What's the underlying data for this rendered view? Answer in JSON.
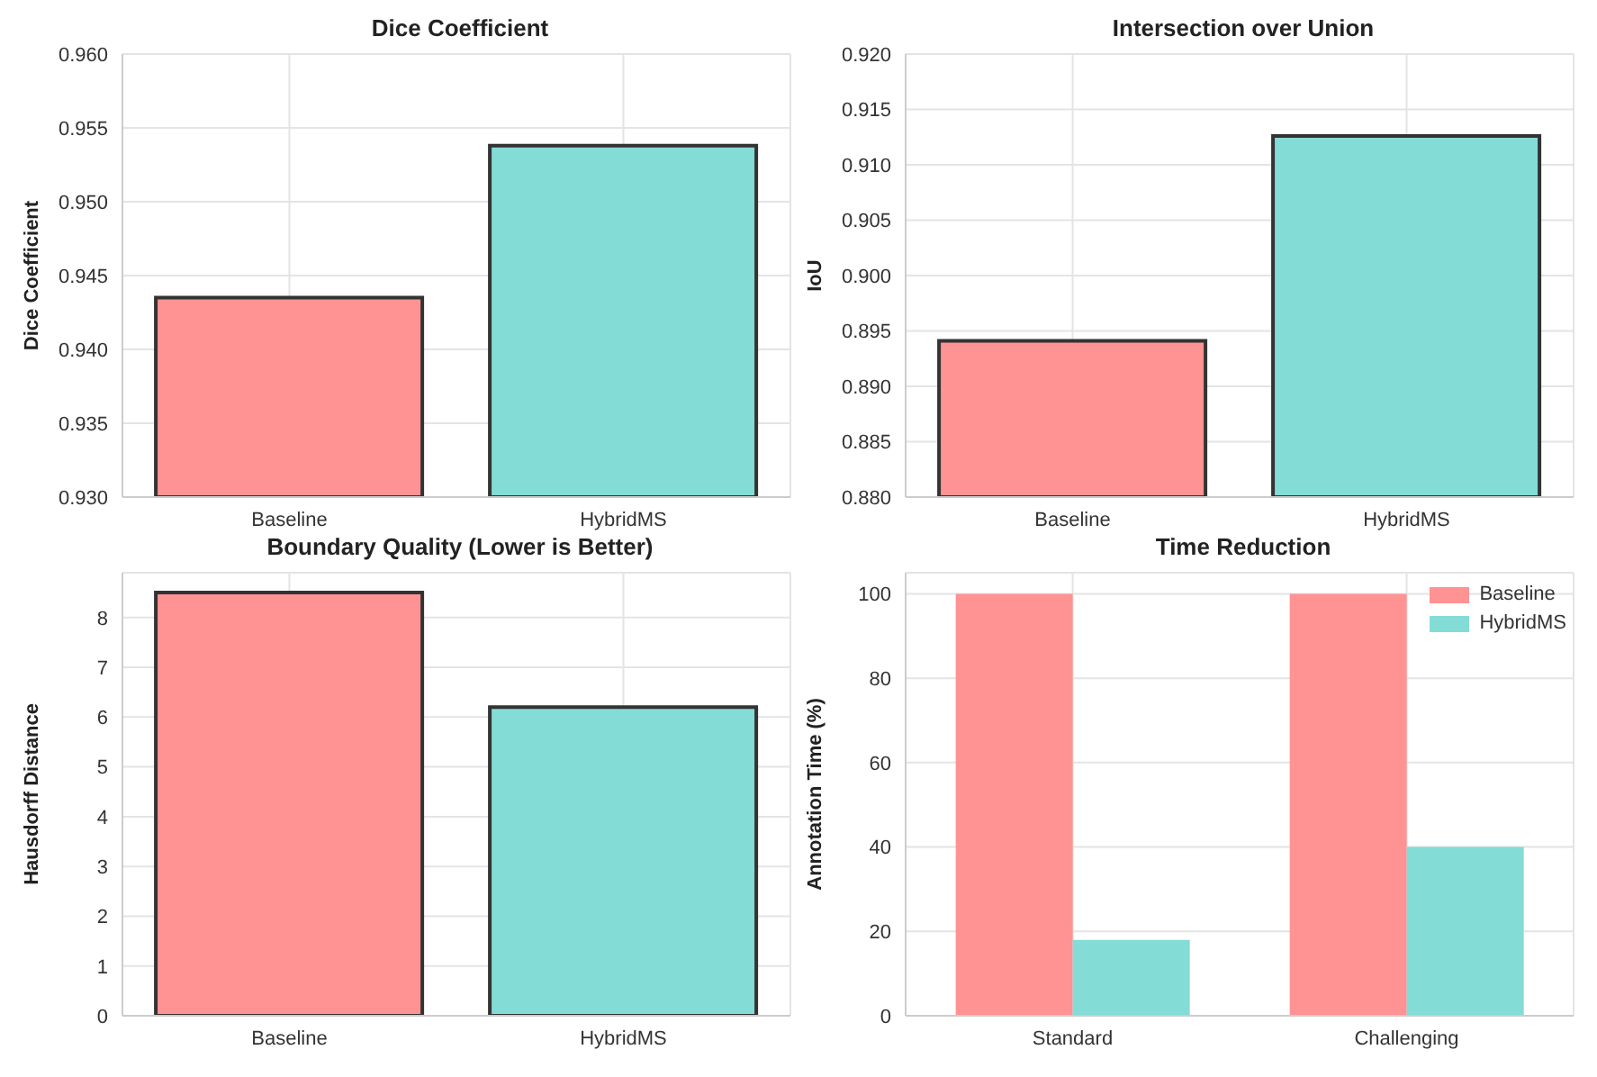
{
  "chart_data": [
    {
      "type": "bar",
      "title": "Dice Coefficient",
      "ylabel": "Dice Coefficient",
      "categories": [
        "Baseline",
        "HybridMS"
      ],
      "values": [
        0.9435,
        0.9538
      ],
      "colors": [
        "#ff9393",
        "#83dcd6"
      ],
      "ylim": [
        0.93,
        0.96
      ],
      "yticks": [
        {
          "value": 0.93,
          "label": "0.930"
        },
        {
          "value": 0.935,
          "label": "0.935"
        },
        {
          "value": 0.94,
          "label": "0.940"
        },
        {
          "value": 0.945,
          "label": "0.945"
        },
        {
          "value": 0.95,
          "label": "0.950"
        },
        {
          "value": 0.955,
          "label": "0.955"
        },
        {
          "value": 0.96,
          "label": "0.960"
        }
      ],
      "grid": true
    },
    {
      "type": "bar",
      "title": "Intersection over Union",
      "ylabel": "IoU",
      "categories": [
        "Baseline",
        "HybridMS"
      ],
      "values": [
        0.8941,
        0.9126
      ],
      "colors": [
        "#ff9393",
        "#83dcd6"
      ],
      "ylim": [
        0.88,
        0.92
      ],
      "yticks": [
        {
          "value": 0.88,
          "label": "0.880"
        },
        {
          "value": 0.885,
          "label": "0.885"
        },
        {
          "value": 0.89,
          "label": "0.890"
        },
        {
          "value": 0.895,
          "label": "0.895"
        },
        {
          "value": 0.9,
          "label": "0.900"
        },
        {
          "value": 0.905,
          "label": "0.905"
        },
        {
          "value": 0.91,
          "label": "0.910"
        },
        {
          "value": 0.915,
          "label": "0.915"
        },
        {
          "value": 0.92,
          "label": "0.920"
        }
      ],
      "grid": true
    },
    {
      "type": "bar",
      "title": "Boundary Quality (Lower is Better)",
      "ylabel": "Hausdorff Distance",
      "categories": [
        "Baseline",
        "HybridMS"
      ],
      "values": [
        8.5,
        6.2
      ],
      "colors": [
        "#ff9393",
        "#83dcd6"
      ],
      "ylim": [
        0,
        8.9
      ],
      "yticks": [
        0,
        1,
        2,
        3,
        4,
        5,
        6,
        7,
        8
      ],
      "grid": true
    },
    {
      "type": "bar",
      "title": "Time Reduction",
      "ylabel": "Annotation Time (%)",
      "categories": [
        "Standard",
        "Challenging"
      ],
      "series": [
        {
          "name": "Baseline",
          "color": "#ff9393",
          "values": [
            100,
            100
          ]
        },
        {
          "name": "HybridMS",
          "color": "#83dcd6",
          "values": [
            18,
            40
          ]
        }
      ],
      "ylim": [
        0,
        105
      ],
      "yticks": [
        0,
        20,
        40,
        60,
        80,
        100
      ],
      "grid": true,
      "legend": "top right"
    }
  ]
}
